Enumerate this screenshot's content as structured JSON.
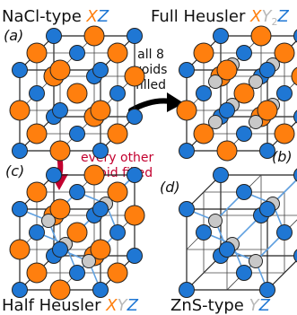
{
  "titles": {
    "nacl": {
      "main": "NaCl-type ",
      "x": "X",
      "z": "Z"
    },
    "full": {
      "main": "Full Heusler ",
      "x": "X",
      "y": "Y",
      "sub": "2",
      "z": "Z"
    },
    "half": {
      "main": "Half Heusler ",
      "x": "X",
      "y": "Y",
      "z": "Z"
    },
    "zns": {
      "main": "ZnS-type ",
      "y": "Y",
      "z": "Z"
    }
  },
  "panel_labels": {
    "a": "(a)",
    "b": "(b)",
    "c": "(c)",
    "d": "(d)"
  },
  "annotations": {
    "all_voids": [
      "all 8",
      "voids",
      "filled"
    ],
    "every_other": [
      "every other",
      "void filled"
    ]
  },
  "colors": {
    "x_atom": "#ff7f0e",
    "y_atom": "#c8c8c8",
    "z_atom": "#1f77d4",
    "red_arrow": "#c3002f",
    "black_arrow": "#000000"
  }
}
